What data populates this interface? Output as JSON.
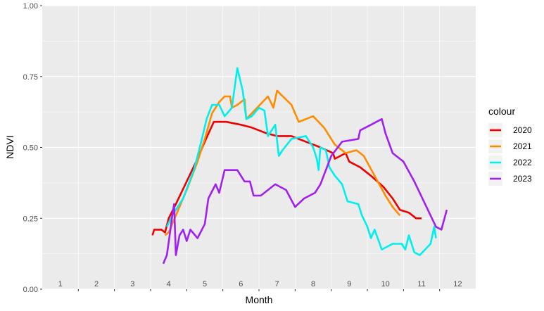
{
  "chart_data": {
    "type": "line",
    "xlabel": "Month",
    "ylabel": "NDVI",
    "xlim": [
      0.5,
      12.5
    ],
    "ylim": [
      0,
      1
    ],
    "x_ticks": [
      1,
      2,
      3,
      4,
      5,
      6,
      7,
      8,
      9,
      10,
      11,
      12
    ],
    "x_tick_labels": [
      "1",
      "2",
      "3",
      "4",
      "5",
      "6",
      "7",
      "8",
      "9",
      "10",
      "11",
      "12"
    ],
    "y_ticks": [
      0,
      0.25,
      0.5,
      0.75,
      1
    ],
    "y_tick_labels": [
      "0.00",
      "0.25",
      "0.50",
      "0.75",
      "1.00"
    ],
    "grid": true,
    "legend": {
      "title": "colour",
      "position": "right"
    },
    "series": [
      {
        "name": "2020",
        "color": "#ee0000",
        "points": [
          [
            3.55,
            0.19
          ],
          [
            3.6,
            0.21
          ],
          [
            3.8,
            0.21
          ],
          [
            3.9,
            0.2
          ],
          [
            4.0,
            0.25
          ],
          [
            4.2,
            0.3
          ],
          [
            4.5,
            0.38
          ],
          [
            4.8,
            0.46
          ],
          [
            5.0,
            0.52
          ],
          [
            5.25,
            0.59
          ],
          [
            5.6,
            0.59
          ],
          [
            6.0,
            0.58
          ],
          [
            6.3,
            0.57
          ],
          [
            6.7,
            0.55
          ],
          [
            7.0,
            0.54
          ],
          [
            7.4,
            0.54
          ],
          [
            7.8,
            0.52
          ],
          [
            8.2,
            0.5
          ],
          [
            8.55,
            0.48
          ],
          [
            8.6,
            0.46
          ],
          [
            8.9,
            0.48
          ],
          [
            9.0,
            0.45
          ],
          [
            9.3,
            0.43
          ],
          [
            9.6,
            0.4
          ],
          [
            9.95,
            0.36
          ],
          [
            10.2,
            0.32
          ],
          [
            10.4,
            0.28
          ],
          [
            10.65,
            0.27
          ],
          [
            10.85,
            0.25
          ],
          [
            11.0,
            0.25
          ]
        ]
      },
      {
        "name": "2021",
        "color": "#ff8c00",
        "points": [
          [
            3.9,
            0.19
          ],
          [
            4.0,
            0.2
          ],
          [
            4.2,
            0.26
          ],
          [
            4.5,
            0.35
          ],
          [
            4.8,
            0.45
          ],
          [
            5.0,
            0.53
          ],
          [
            5.2,
            0.62
          ],
          [
            5.4,
            0.66
          ],
          [
            5.55,
            0.68
          ],
          [
            5.7,
            0.68
          ],
          [
            5.75,
            0.64
          ],
          [
            5.9,
            0.65
          ],
          [
            6.1,
            0.67
          ],
          [
            6.15,
            0.6
          ],
          [
            6.3,
            0.62
          ],
          [
            6.6,
            0.66
          ],
          [
            6.75,
            0.68
          ],
          [
            6.9,
            0.64
          ],
          [
            7.0,
            0.7
          ],
          [
            7.4,
            0.65
          ],
          [
            7.6,
            0.59
          ],
          [
            8.0,
            0.61
          ],
          [
            8.3,
            0.57
          ],
          [
            8.6,
            0.51
          ],
          [
            8.9,
            0.48
          ],
          [
            9.2,
            0.49
          ],
          [
            9.4,
            0.47
          ],
          [
            9.7,
            0.4
          ],
          [
            10.0,
            0.33
          ],
          [
            10.2,
            0.29
          ],
          [
            10.4,
            0.26
          ]
        ]
      },
      {
        "name": "2022",
        "color": "#00eeee",
        "points": [
          [
            3.95,
            0.22
          ],
          [
            4.1,
            0.26
          ],
          [
            4.4,
            0.32
          ],
          [
            4.7,
            0.42
          ],
          [
            4.9,
            0.52
          ],
          [
            5.05,
            0.6
          ],
          [
            5.2,
            0.65
          ],
          [
            5.4,
            0.65
          ],
          [
            5.55,
            0.61
          ],
          [
            5.75,
            0.64
          ],
          [
            5.9,
            0.78
          ],
          [
            6.05,
            0.7
          ],
          [
            6.15,
            0.6
          ],
          [
            6.3,
            0.61
          ],
          [
            6.5,
            0.64
          ],
          [
            6.65,
            0.63
          ],
          [
            6.75,
            0.54
          ],
          [
            6.95,
            0.58
          ],
          [
            7.05,
            0.47
          ],
          [
            7.15,
            0.49
          ],
          [
            7.4,
            0.53
          ],
          [
            7.8,
            0.54
          ],
          [
            8.0,
            0.5
          ],
          [
            8.1,
            0.46
          ],
          [
            8.15,
            0.42
          ],
          [
            8.2,
            0.5
          ],
          [
            8.35,
            0.49
          ],
          [
            8.45,
            0.43
          ],
          [
            8.6,
            0.4
          ],
          [
            8.8,
            0.37
          ],
          [
            8.95,
            0.31
          ],
          [
            9.25,
            0.3
          ],
          [
            9.35,
            0.26
          ],
          [
            9.5,
            0.22
          ],
          [
            9.6,
            0.18
          ],
          [
            9.7,
            0.21
          ],
          [
            9.9,
            0.14
          ],
          [
            10.2,
            0.16
          ],
          [
            10.45,
            0.16
          ],
          [
            10.55,
            0.14
          ],
          [
            10.65,
            0.19
          ],
          [
            10.8,
            0.13
          ],
          [
            10.95,
            0.12
          ],
          [
            11.1,
            0.14
          ],
          [
            11.25,
            0.16
          ],
          [
            11.35,
            0.22
          ],
          [
            11.4,
            0.18
          ]
        ]
      },
      {
        "name": "2023",
        "color": "#a020f0",
        "points": [
          [
            3.85,
            0.09
          ],
          [
            3.95,
            0.12
          ],
          [
            4.05,
            0.21
          ],
          [
            4.1,
            0.26
          ],
          [
            4.15,
            0.3
          ],
          [
            4.2,
            0.12
          ],
          [
            4.3,
            0.19
          ],
          [
            4.4,
            0.21
          ],
          [
            4.5,
            0.17
          ],
          [
            4.6,
            0.21
          ],
          [
            4.8,
            0.18
          ],
          [
            5.0,
            0.23
          ],
          [
            5.1,
            0.32
          ],
          [
            5.3,
            0.37
          ],
          [
            5.4,
            0.34
          ],
          [
            5.55,
            0.42
          ],
          [
            5.7,
            0.42
          ],
          [
            5.9,
            0.42
          ],
          [
            6.1,
            0.38
          ],
          [
            6.25,
            0.38
          ],
          [
            6.35,
            0.33
          ],
          [
            6.55,
            0.33
          ],
          [
            6.75,
            0.35
          ],
          [
            6.95,
            0.37
          ],
          [
            7.25,
            0.35
          ],
          [
            7.5,
            0.29
          ],
          [
            7.75,
            0.32
          ],
          [
            8.05,
            0.34
          ],
          [
            8.2,
            0.37
          ],
          [
            8.5,
            0.47
          ],
          [
            8.8,
            0.52
          ],
          [
            9.25,
            0.53
          ],
          [
            9.3,
            0.56
          ],
          [
            9.6,
            0.58
          ],
          [
            9.9,
            0.6
          ],
          [
            10.0,
            0.55
          ],
          [
            10.2,
            0.48
          ],
          [
            10.5,
            0.45
          ],
          [
            10.8,
            0.38
          ],
          [
            11.1,
            0.3
          ],
          [
            11.4,
            0.22
          ],
          [
            11.55,
            0.21
          ],
          [
            11.7,
            0.28
          ]
        ]
      }
    ]
  }
}
